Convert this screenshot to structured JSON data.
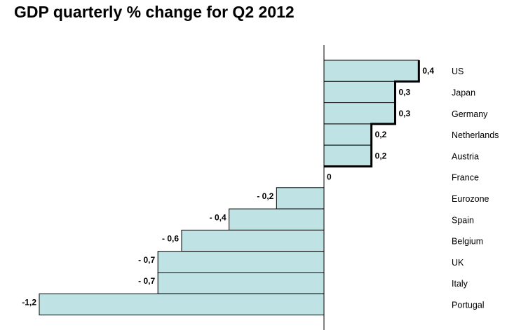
{
  "title": "GDP quarterly % change for Q2 2012",
  "chart_data": {
    "type": "bar",
    "orientation": "horizontal",
    "title": "GDP quarterly % change for Q2 2012",
    "xlabel": "",
    "ylabel": "",
    "categories": [
      "US",
      "Japan",
      "Germany",
      "Netherlands",
      "Austria",
      "France",
      "Eurozone",
      "Spain",
      "Belgium",
      "UK",
      "Italy",
      "Portugal"
    ],
    "values": [
      0.4,
      0.3,
      0.3,
      0.2,
      0.2,
      0,
      -0.2,
      -0.4,
      -0.6,
      -0.7,
      -0.7,
      -1.2
    ],
    "value_labels": [
      "0,4",
      "0,3",
      "0,3",
      "0,2",
      "0,2",
      "0",
      "- 0,2",
      "- 0,4",
      "- 0,6",
      "- 0,7",
      "- 0,7",
      "-1,2"
    ],
    "xlim": [
      -1.2,
      0.4
    ],
    "grid": false,
    "legend": "none",
    "colors": {
      "bar_fill": "#bfe3e4",
      "bar_stroke": "#000000",
      "outline": "#000000"
    }
  }
}
